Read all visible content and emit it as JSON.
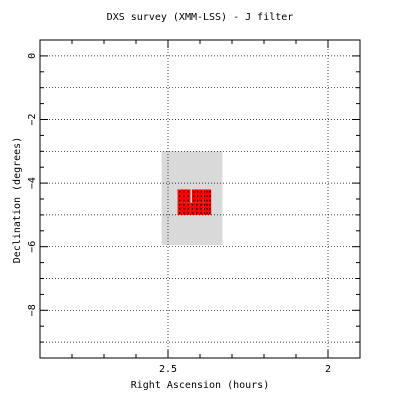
{
  "chart_data": {
    "type": "scatter",
    "title": "DXS survey (XMM-LSS) - J filter",
    "xlabel": "Right Ascension (hours)",
    "ylabel": "Declination (degrees)",
    "xlim": [
      2.9,
      1.9
    ],
    "ylim": [
      -9.5,
      0.5
    ],
    "x_reversed": true,
    "xticks": [
      2.5,
      2
    ],
    "xtick_labels": [
      "2.5",
      "2"
    ],
    "yticks": [
      0,
      -2,
      -4,
      -6,
      -8
    ],
    "ytick_labels": [
      "0",
      "−2",
      "−4",
      "−6",
      "−8"
    ],
    "grid": true,
    "grid_style": "dotted",
    "legend": "none",
    "regions": [
      {
        "name": "coverage",
        "ra": [
          2.33,
          2.52
        ],
        "dec": [
          -5.95,
          -3.0
        ],
        "color": "#d9d9d9"
      }
    ],
    "tiles": [
      {
        "ra": [
          2.43,
          2.47
        ],
        "dec": [
          -4.62,
          -4.2
        ],
        "color": "#ff0000"
      },
      {
        "ra": [
          2.39,
          2.425
        ],
        "dec": [
          -4.62,
          -4.2
        ],
        "color": "#ff0000"
      },
      {
        "ra": [
          2.365,
          2.39
        ],
        "dec": [
          -4.62,
          -4.2
        ],
        "color": "#ff0000"
      },
      {
        "ra": [
          2.43,
          2.47
        ],
        "dec": [
          -5.0,
          -4.62
        ],
        "color": "#ff0000"
      },
      {
        "ra": [
          2.39,
          2.43
        ],
        "dec": [
          -5.0,
          -4.62
        ],
        "color": "#ff0000"
      },
      {
        "ra": [
          2.365,
          2.39
        ],
        "dec": [
          -5.0,
          -4.62
        ],
        "color": "#ff0000"
      }
    ],
    "tile_color": "#ff0000",
    "background_color": "#ffffff"
  }
}
